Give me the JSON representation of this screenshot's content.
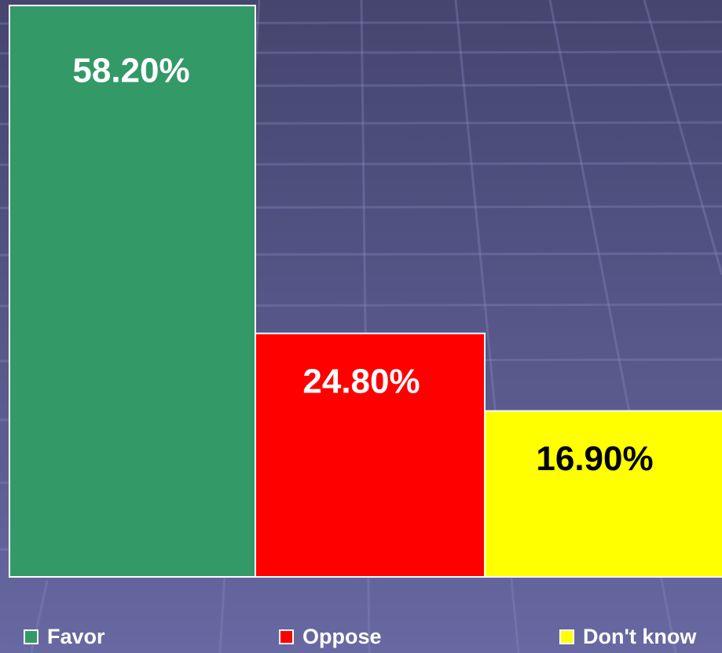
{
  "chart_data": {
    "type": "bar",
    "series": [
      {
        "name": "Favor",
        "color": "#339966",
        "label_color": "#ffffff",
        "values": [
          58.2
        ],
        "value_labels": [
          "58.20%"
        ]
      },
      {
        "name": "Oppose",
        "color": "#ff0000",
        "label_color": "#ffffff",
        "values": [
          24.8
        ],
        "value_labels": [
          "24.80%"
        ]
      },
      {
        "name": "Don't know",
        "color": "#ffff00",
        "label_color": "#000000",
        "values": [
          16.9
        ],
        "value_labels": [
          "16.90%"
        ]
      }
    ],
    "legend": "bottom"
  }
}
